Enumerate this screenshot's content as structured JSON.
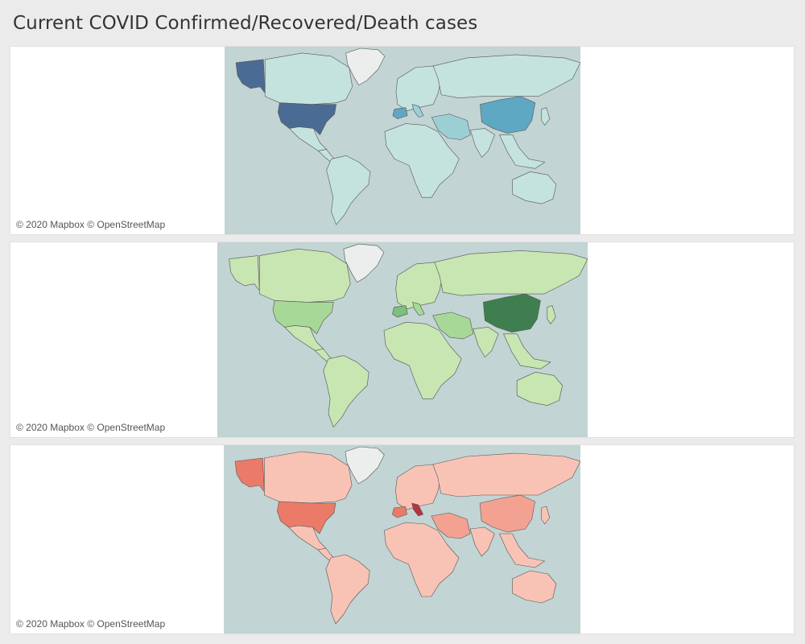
{
  "dashboard": {
    "title": "Current COVID Confirmed/Recovered/Death cases"
  },
  "maps": [
    {
      "measure": "Confirmed",
      "attribution": "© 2020 Mapbox © OpenStreetMap",
      "colors": {
        "ocean": "#c2d4d4",
        "low": "#c5e3de",
        "medium": "#9ccfd4",
        "high": "#5fa8c4",
        "max": "#4a6c94",
        "greenland": "#ebeeed"
      }
    },
    {
      "measure": "Recovered",
      "attribution": "© 2020 Mapbox © OpenStreetMap",
      "colors": {
        "ocean": "#c2d4d4",
        "low": "#c8e6b2",
        "medium": "#a8d898",
        "high": "#7fbf7c",
        "max": "#3f7f4f",
        "greenland": "#ebeeed"
      }
    },
    {
      "measure": "Deaths",
      "attribution": "© 2020 Mapbox © OpenStreetMap",
      "colors": {
        "ocean": "#c2d4d4",
        "low": "#f8c3b5",
        "medium": "#f3a292",
        "high": "#ec7a68",
        "max": "#b8323f",
        "greenland": "#ebeeed"
      }
    }
  ]
}
